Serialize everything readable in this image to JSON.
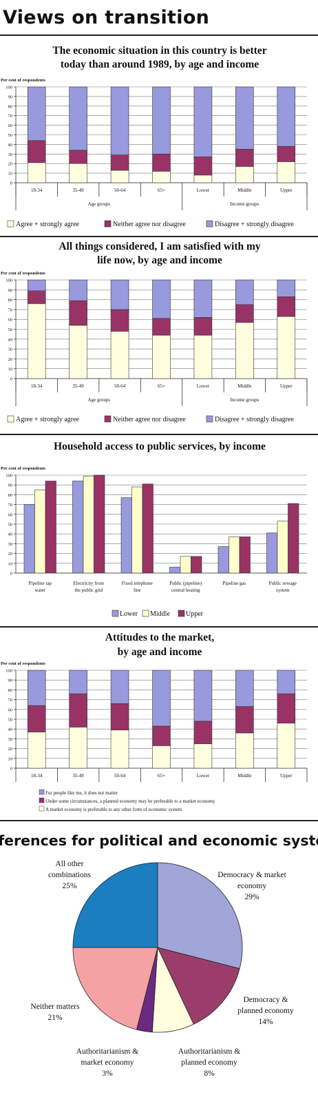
{
  "page": {
    "title": "Views on transition",
    "colors": {
      "agree": "#ffffe0",
      "neither": "#993366",
      "disagree": "#9999dd",
      "lower": "#9999dd",
      "middle": "#ffffcc",
      "upper": "#993366",
      "pie_dem_market": "#a0a6d8",
      "pie_dem_planned": "#9b3d6a",
      "pie_auth_planned": "#ffffe0",
      "pie_auth_market": "#6a2a80",
      "pie_neither": "#f4a2a4",
      "pie_other": "#1a7ec0"
    }
  },
  "chart_data": [
    {
      "type": "bar",
      "stacked": true,
      "title_lines": [
        "The economic situation in this country is better",
        "today than around 1989, by age and income"
      ],
      "ylabel": "Per cent of respondents",
      "ylim": [
        0,
        100
      ],
      "yticks": [
        0,
        10,
        20,
        30,
        40,
        50,
        60,
        70,
        80,
        90,
        100
      ],
      "categories": [
        "18-34",
        "35-49",
        "50-64",
        "65+",
        "Lower",
        "Middle",
        "Upper"
      ],
      "group_labels": [
        "Age groups",
        "Income groups"
      ],
      "series": [
        {
          "name": "Agree + strongly agree",
          "values": [
            21,
            20,
            13,
            12,
            8,
            17,
            22
          ]
        },
        {
          "name": "Neither agree nor disagree",
          "values": [
            23,
            14,
            16,
            18,
            19,
            18,
            16
          ]
        },
        {
          "name": "Disagree + strongly disagree",
          "values": [
            56,
            66,
            71,
            70,
            73,
            65,
            62
          ]
        }
      ],
      "legend": "bottom"
    },
    {
      "type": "bar",
      "stacked": true,
      "title_lines": [
        "All things considered, I am satisfied with my",
        "life now, by age and income"
      ],
      "ylabel": "Per cent of respondents",
      "ylim": [
        0,
        100
      ],
      "yticks": [
        0,
        10,
        20,
        30,
        40,
        50,
        60,
        70,
        80,
        90,
        100
      ],
      "categories": [
        "18-34",
        "35-49",
        "50-64",
        "65+",
        "Lower",
        "Middle",
        "Upper"
      ],
      "group_labels": [
        "Age groups",
        "Income groups"
      ],
      "series": [
        {
          "name": "Agree + strongly agree",
          "values": [
            76,
            54,
            48,
            44,
            44,
            57,
            63
          ]
        },
        {
          "name": "Neither agree nor disagree",
          "values": [
            13,
            25,
            22,
            17,
            18,
            18,
            20
          ]
        },
        {
          "name": "Disagree + strongly disagree",
          "values": [
            11,
            21,
            30,
            39,
            38,
            25,
            17
          ]
        }
      ],
      "legend": "bottom"
    },
    {
      "type": "bar",
      "grouped": true,
      "title_lines": [
        "Household access to public services, by income"
      ],
      "ylabel": "Per cent of respondents",
      "ylim": [
        0,
        100
      ],
      "yticks": [
        0,
        10,
        20,
        30,
        40,
        50,
        60,
        70,
        80,
        90,
        100
      ],
      "categories": [
        [
          "Pipeline tap",
          "water"
        ],
        [
          "Electricity from",
          "the public grid"
        ],
        [
          "Fixed telephone",
          "line"
        ],
        [
          "Public (pipeline)",
          "central heating"
        ],
        [
          "Pipeline gas"
        ],
        [
          "Public sewage",
          "system"
        ]
      ],
      "series": [
        {
          "name": "Lower",
          "values": [
            70,
            94,
            77,
            6,
            27,
            41
          ]
        },
        {
          "name": "Middle",
          "values": [
            85,
            99,
            88,
            17,
            37,
            53
          ]
        },
        {
          "name": "Upper",
          "values": [
            94,
            100,
            91,
            17,
            37,
            71
          ]
        }
      ],
      "legend": "bottom"
    },
    {
      "type": "bar",
      "stacked": true,
      "title_lines": [
        "Attitudes to the market,",
        "by age and income"
      ],
      "ylabel": "Per cent of respondents",
      "ylim": [
        0,
        100
      ],
      "yticks": [
        0,
        10,
        20,
        30,
        40,
        50,
        60,
        70,
        80,
        90,
        100
      ],
      "categories": [
        "18-34",
        "35-49",
        "50-64",
        "65+",
        "Lower",
        "Middle",
        "Upper"
      ],
      "series": [
        {
          "name": "A market economy is preferable to any other form of economic system",
          "values": [
            37,
            42,
            39,
            23,
            25,
            36,
            46
          ]
        },
        {
          "name": "Under some circumstances, a planned economy may be preferable to a market economy",
          "values": [
            27,
            34,
            27,
            20,
            23,
            27,
            30
          ]
        },
        {
          "name": "For people like me, it does not matter",
          "values": [
            36,
            24,
            34,
            57,
            52,
            37,
            24
          ]
        }
      ],
      "legend_order": [
        2,
        1,
        0
      ],
      "legend": "bottom"
    },
    {
      "type": "pie",
      "title_lines": [
        "Preferences for political and economic systems"
      ],
      "slices": [
        {
          "label_lines": [
            "Democracy & market",
            "economy"
          ],
          "pct_label": "29%",
          "value": 29
        },
        {
          "label_lines": [
            "Democracy &",
            "planned economy"
          ],
          "pct_label": "14%",
          "value": 14
        },
        {
          "label_lines": [
            "Authoritarianism &",
            "planned economy"
          ],
          "pct_label": "8%",
          "value": 8
        },
        {
          "label_lines": [
            "Authoritarianism &",
            "market economy"
          ],
          "pct_label": "3%",
          "value": 3
        },
        {
          "label_lines": [
            "Neither matters"
          ],
          "pct_label": "21%",
          "value": 21
        },
        {
          "label_lines": [
            "All other",
            "combinations"
          ],
          "pct_label": "25%",
          "value": 25
        }
      ]
    }
  ]
}
